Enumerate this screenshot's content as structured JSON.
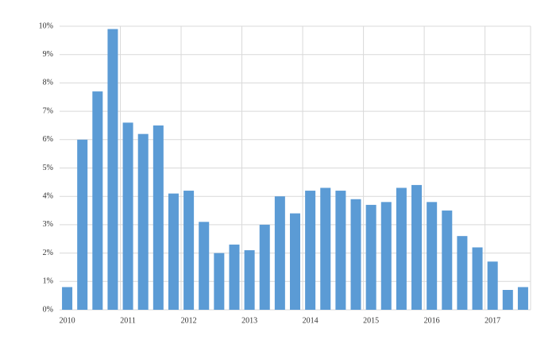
{
  "chart_data": {
    "type": "bar",
    "categories": [
      "2010",
      null,
      null,
      null,
      "2011",
      null,
      null,
      null,
      "2012",
      null,
      null,
      null,
      "2013",
      null,
      null,
      null,
      "2014",
      null,
      null,
      null,
      "2015",
      null,
      null,
      null,
      "2016",
      null,
      null,
      null,
      "2017",
      null,
      null
    ],
    "values": [
      0.8,
      6.0,
      7.7,
      9.9,
      6.6,
      6.2,
      6.5,
      4.1,
      4.2,
      3.1,
      2.0,
      2.3,
      2.1,
      3.0,
      4.0,
      3.4,
      4.2,
      4.3,
      4.2,
      3.9,
      3.7,
      3.8,
      4.3,
      4.4,
      3.8,
      3.5,
      2.6,
      2.2,
      1.7,
      0.7,
      0.8
    ],
    "color": "#5b9bd5",
    "ylim": [
      0,
      10
    ],
    "yticks": [
      {
        "value": 0,
        "label": "0%"
      },
      {
        "value": 1,
        "label": "1%"
      },
      {
        "value": 2,
        "label": "2%"
      },
      {
        "value": 3,
        "label": "3%"
      },
      {
        "value": 4,
        "label": "4%"
      },
      {
        "value": 5,
        "label": "5%"
      },
      {
        "value": 6,
        "label": "6%"
      },
      {
        "value": 7,
        "label": "7%"
      },
      {
        "value": 8,
        "label": "8%"
      },
      {
        "value": 9,
        "label": "9%"
      },
      {
        "value": 10,
        "label": "10%"
      }
    ],
    "grid": true
  }
}
